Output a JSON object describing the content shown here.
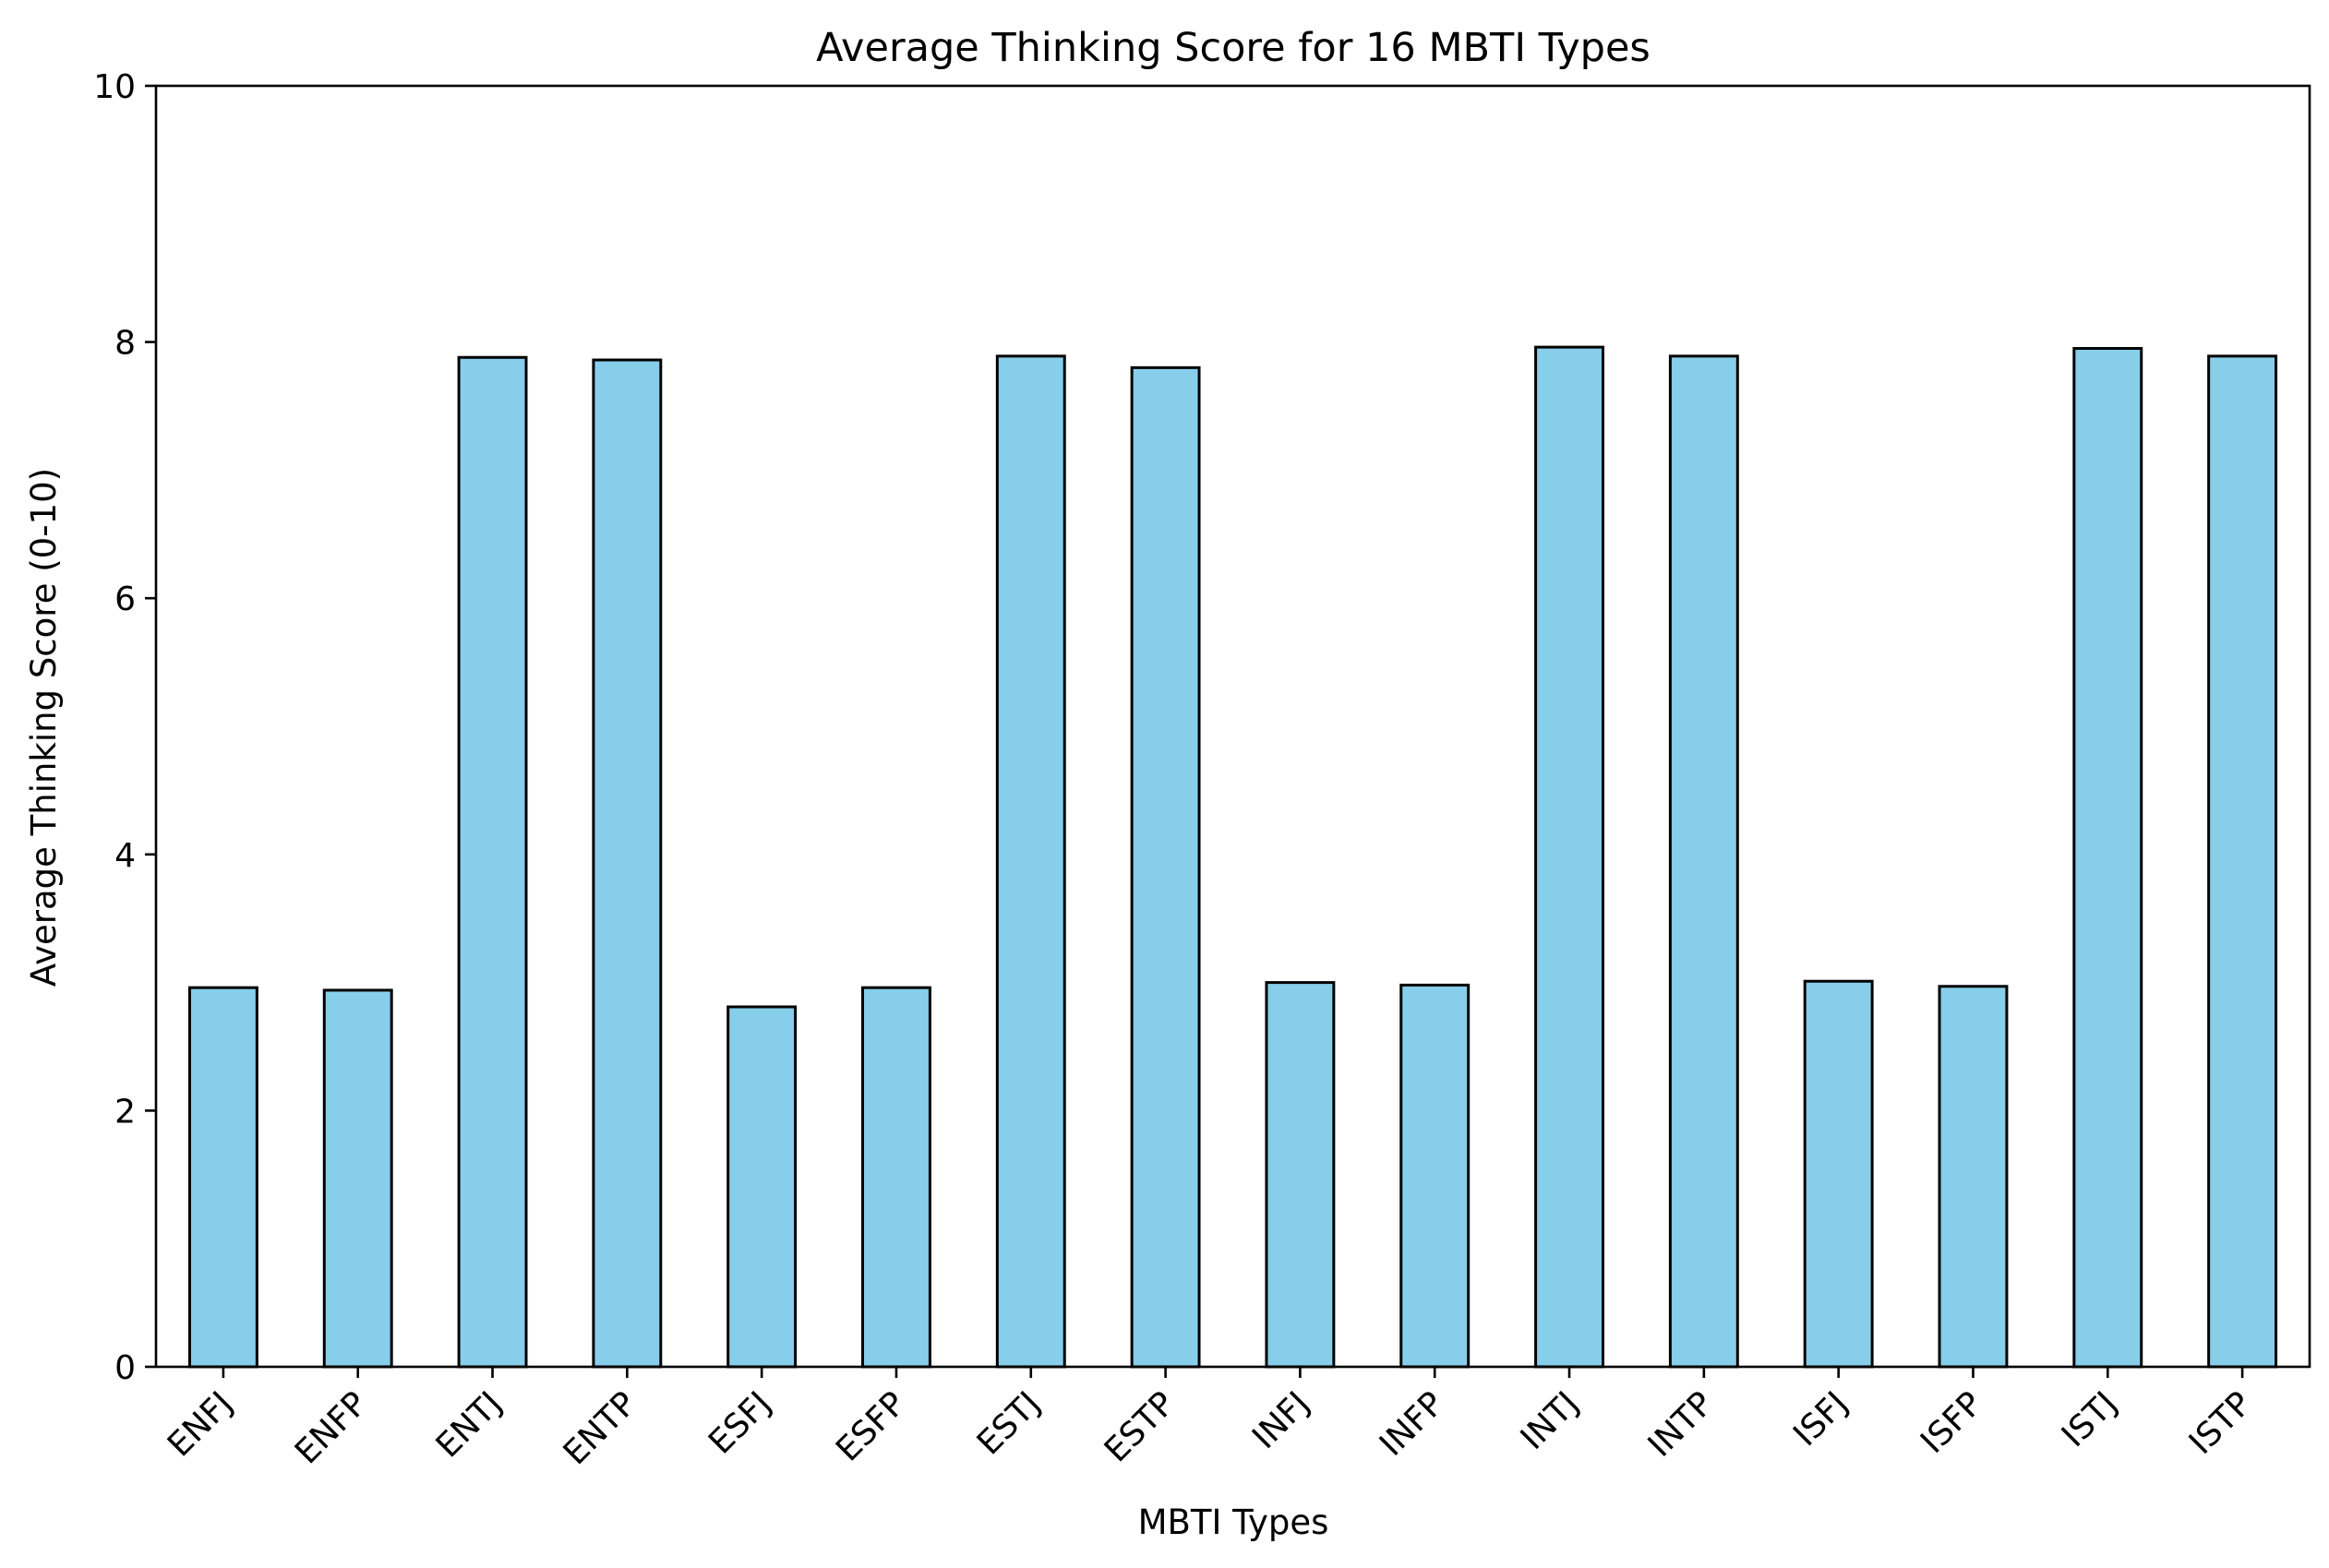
{
  "chart_data": {
    "type": "bar",
    "title": "Average Thinking Score for 16 MBTI Types",
    "xlabel": "MBTI Types",
    "ylabel": "Average Thinking Score (0-10)",
    "categories": [
      "ENFJ",
      "ENFP",
      "ENTJ",
      "ENTP",
      "ESFJ",
      "ESFP",
      "ESTJ",
      "ESTP",
      "INFJ",
      "INFP",
      "INTJ",
      "INTP",
      "ISFJ",
      "ISFP",
      "ISTJ",
      "ISTP"
    ],
    "values": [
      2.96,
      2.94,
      7.88,
      7.86,
      2.81,
      2.96,
      7.89,
      7.8,
      3.0,
      2.98,
      7.96,
      7.89,
      3.01,
      2.97,
      7.95,
      7.89
    ],
    "ylim": [
      0,
      10
    ],
    "yticks": [
      0,
      2,
      4,
      6,
      8,
      10
    ],
    "grid": false,
    "bar_color": "#87ceeb",
    "edge_color": "#000000"
  }
}
